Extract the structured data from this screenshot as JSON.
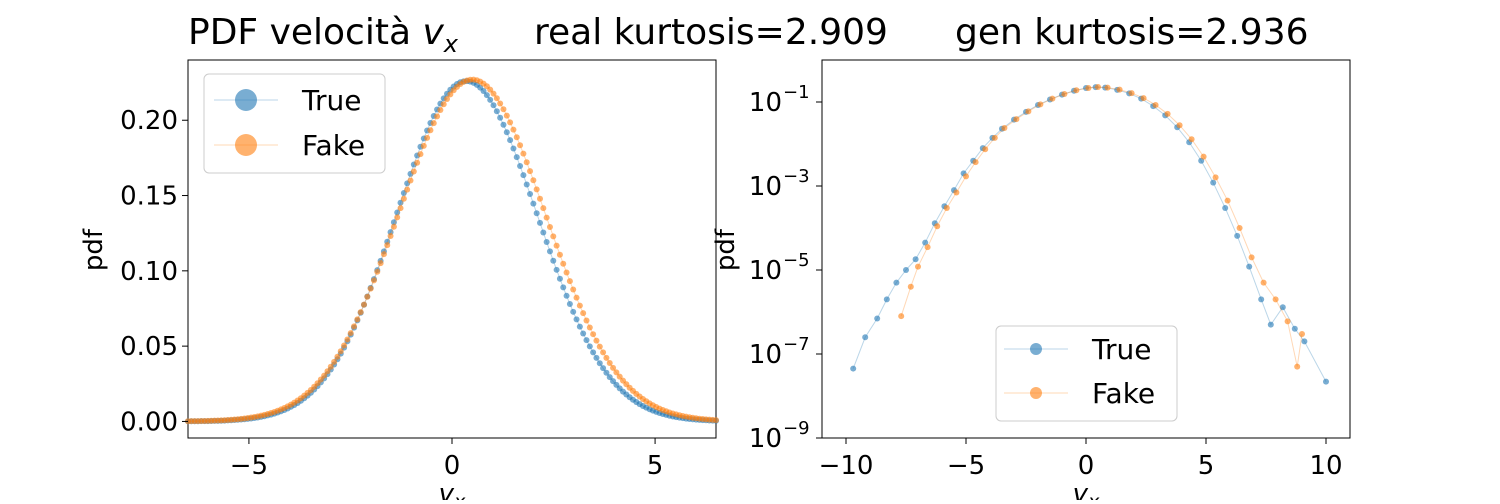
{
  "titles": {
    "left_prefix": "PDF velocità ",
    "left_var": "v",
    "left_sub": "x",
    "real_kurtosis": "real kurtosis=2.909",
    "gen_kurtosis": "gen kurtosis=2.936"
  },
  "colors": {
    "true": "#1f77b4",
    "fake": "#ff7f0e"
  },
  "chart_data": [
    {
      "type": "scatter",
      "xlabel": "v_x",
      "ylabel": "pdf",
      "xlim": [
        -6.5,
        6.5
      ],
      "ylim": [
        -0.011,
        0.24
      ],
      "yscale": "linear",
      "xticks": [
        -5,
        0,
        5
      ],
      "xtick_labels": [
        "−5",
        "0",
        "5"
      ],
      "yticks": [
        0.0,
        0.05,
        0.1,
        0.15,
        0.2
      ],
      "ytick_labels": [
        "0.00",
        "0.05",
        "0.10",
        "0.15",
        "0.20"
      ],
      "grid": false,
      "legend": {
        "position": "top-left",
        "entries": [
          "True",
          "Fake"
        ]
      },
      "series": [
        {
          "name": "True",
          "color": "#1f77b4",
          "model": {
            "amplitude": 0.226,
            "mu": 0.35,
            "sigma_left": 1.72,
            "sigma_right": 1.75,
            "peak_shift": 0.0
          },
          "x": [
            -6.5,
            6.5
          ],
          "points": 160
        },
        {
          "name": "Fake",
          "color": "#ff7f0e",
          "model": {
            "amplitude": 0.227,
            "mu": 0.5,
            "sigma_left": 1.82,
            "sigma_right": 1.8,
            "peak_shift": 0.0
          },
          "x": [
            -6.5,
            6.5
          ],
          "points": 160
        }
      ]
    },
    {
      "type": "scatter",
      "xlabel": "v_x",
      "ylabel": "pdf",
      "xlim": [
        -11,
        11
      ],
      "ylim_log10": [
        -9,
        0
      ],
      "yscale": "log",
      "xticks": [
        -10,
        -5,
        0,
        5,
        10
      ],
      "xtick_labels": [
        "−10",
        "−5",
        "0",
        "5",
        "10"
      ],
      "yticks_log10": [
        -9,
        -7,
        -5,
        -3,
        -1
      ],
      "ytick_labels": [
        "10",
        "10",
        "10",
        "10",
        "10"
      ],
      "ytick_exponents": [
        "−9",
        "−7",
        "−5",
        "−3",
        "−1"
      ],
      "grid": false,
      "legend": {
        "position": "lower-center",
        "entries": [
          "True",
          "Fake"
        ]
      },
      "series": [
        {
          "name": "True",
          "color": "#1f77b4",
          "points_v": [
            [
              -9.7,
              4.5e-08
            ],
            [
              -9.2,
              2.5e-07
            ],
            [
              -8.7,
              7e-07
            ],
            [
              -8.3,
              2e-06
            ],
            [
              -7.9,
              5e-06
            ],
            [
              -7.5,
              1e-05
            ],
            [
              -7.1,
              1.8e-05
            ],
            [
              -6.7,
              4.5e-05
            ],
            [
              -6.3,
              0.00013
            ],
            [
              -5.9,
              0.00033
            ],
            [
              -5.5,
              0.0008
            ],
            [
              -5.1,
              0.002
            ],
            [
              -4.7,
              0.004
            ],
            [
              -4.3,
              0.008
            ],
            [
              -3.9,
              0.014
            ],
            [
              -3.5,
              0.023
            ],
            [
              -3.0,
              0.038
            ],
            [
              -2.5,
              0.058
            ],
            [
              -2.0,
              0.085
            ],
            [
              -1.5,
              0.115
            ],
            [
              -1.0,
              0.15
            ],
            [
              -0.5,
              0.185
            ],
            [
              0.0,
              0.215
            ],
            [
              0.4,
              0.226
            ],
            [
              0.8,
              0.22
            ],
            [
              1.3,
              0.195
            ],
            [
              1.8,
              0.16
            ],
            [
              2.3,
              0.12
            ],
            [
              2.8,
              0.08
            ],
            [
              3.3,
              0.048
            ],
            [
              3.8,
              0.025
            ],
            [
              4.3,
              0.011
            ],
            [
              4.8,
              0.004
            ],
            [
              5.3,
              0.0012
            ],
            [
              5.8,
              0.0003
            ],
            [
              6.3,
              6.5e-05
            ],
            [
              6.8,
              1.2e-05
            ],
            [
              7.3,
              2e-06
            ],
            [
              7.7,
              5e-07
            ],
            [
              8.2,
              1.3e-06
            ],
            [
              8.7,
              4e-07
            ],
            [
              9.1,
              2e-07
            ],
            [
              10.0,
              2.2e-08
            ]
          ]
        },
        {
          "name": "Fake",
          "color": "#ff7f0e",
          "points_v": [
            [
              -7.7,
              8e-07
            ],
            [
              -7.3,
              4e-06
            ],
            [
              -7.0,
              1.2e-05
            ],
            [
              -6.6,
              3.5e-05
            ],
            [
              -6.2,
              0.00011
            ],
            [
              -5.8,
              0.0003
            ],
            [
              -5.4,
              0.0007
            ],
            [
              -5.0,
              0.0017
            ],
            [
              -4.6,
              0.0037
            ],
            [
              -4.2,
              0.0075
            ],
            [
              -3.8,
              0.014
            ],
            [
              -3.4,
              0.024
            ],
            [
              -2.9,
              0.039
            ],
            [
              -2.4,
              0.06
            ],
            [
              -1.9,
              0.088
            ],
            [
              -1.4,
              0.12
            ],
            [
              -0.9,
              0.155
            ],
            [
              -0.4,
              0.19
            ],
            [
              0.1,
              0.215
            ],
            [
              0.5,
              0.227
            ],
            [
              0.9,
              0.22
            ],
            [
              1.4,
              0.197
            ],
            [
              1.9,
              0.163
            ],
            [
              2.4,
              0.124
            ],
            [
              2.9,
              0.085
            ],
            [
              3.4,
              0.052
            ],
            [
              3.9,
              0.028
            ],
            [
              4.4,
              0.013
            ],
            [
              4.9,
              0.005
            ],
            [
              5.4,
              0.0016
            ],
            [
              5.9,
              0.00045
            ],
            [
              6.4,
              0.0001
            ],
            [
              6.9,
              2e-05
            ],
            [
              7.4,
              5e-06
            ],
            [
              7.9,
              2e-06
            ],
            [
              8.4,
              6e-07
            ],
            [
              8.8,
              5e-08
            ],
            [
              9.0,
              3e-07
            ]
          ]
        }
      ]
    }
  ]
}
